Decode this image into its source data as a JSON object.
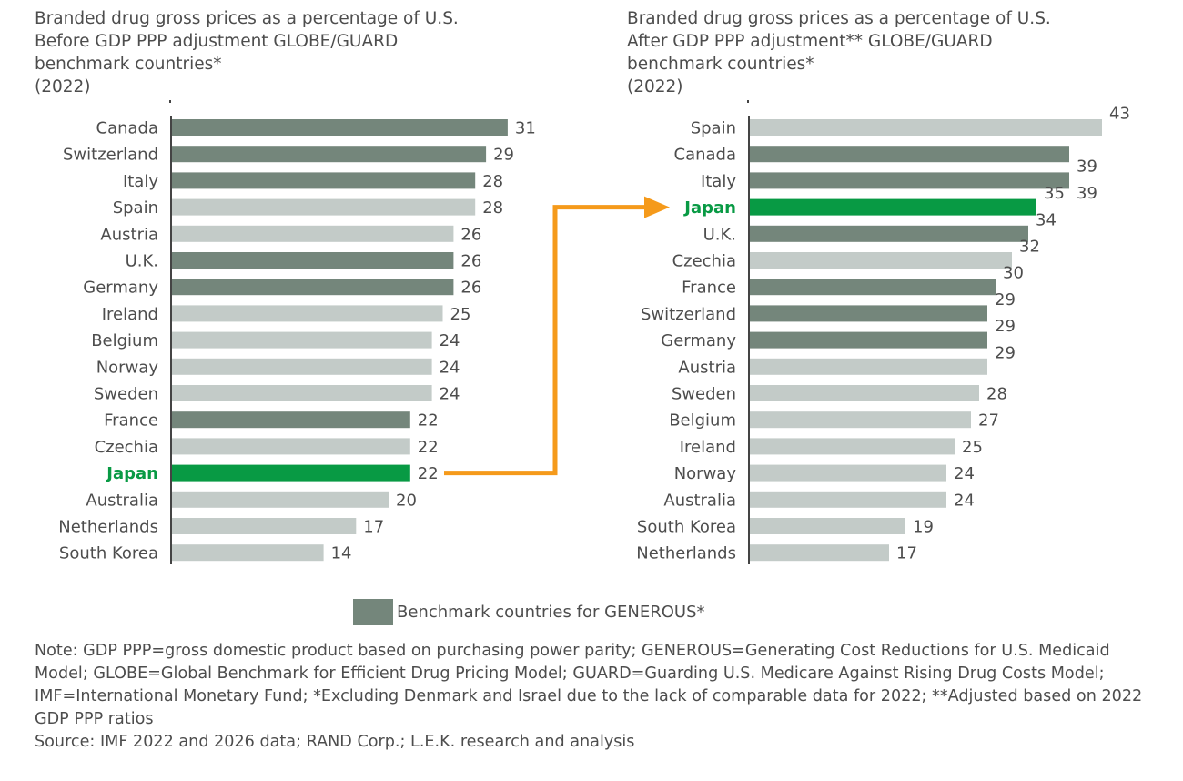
{
  "colors": {
    "benchmark": "#74867b",
    "other": "#c3cbc8",
    "japan": "#089a44",
    "arrow": "#f59a1b",
    "text": "#4d4d4d"
  },
  "chart_data": [
    {
      "type": "bar",
      "orientation": "horizontal",
      "title": "Branded drug gross prices as a percentage of U.S.\nBefore GDP PPP adjustment GLOBE/GUARD\nbenchmark countries*\n(2022)",
      "categories": [
        "Canada",
        "Switzerland",
        "Italy",
        "Spain",
        "Austria",
        "U.K.",
        "Germany",
        "Ireland",
        "Belgium",
        "Norway",
        "Sweden",
        "France",
        "Czechia",
        "Japan",
        "Australia",
        "Netherlands",
        "South Korea"
      ],
      "values": [
        31,
        29,
        28,
        28,
        26,
        26,
        26,
        25,
        24,
        24,
        24,
        22,
        22,
        22,
        20,
        17,
        14
      ],
      "group": [
        "benchmark",
        "benchmark",
        "benchmark",
        "other",
        "other",
        "benchmark",
        "benchmark",
        "other",
        "other",
        "other",
        "other",
        "benchmark",
        "other",
        "japan",
        "other",
        "other",
        "other"
      ]
    },
    {
      "type": "bar",
      "orientation": "horizontal",
      "title": "Branded drug gross prices as a percentage of U.S.\nAfter GDP PPP adjustment** GLOBE/GUARD\nbenchmark countries*\n(2022)",
      "categories": [
        "Spain",
        "Canada",
        "Italy",
        "Japan",
        "U.K.",
        "Czechia",
        "France",
        "Switzerland",
        "Germany",
        "Austria",
        "Sweden",
        "Belgium",
        "Ireland",
        "Norway",
        "Australia",
        "South Korea",
        "Netherlands"
      ],
      "values": [
        43,
        39,
        39,
        35,
        34,
        32,
        30,
        29,
        29,
        29,
        28,
        27,
        25,
        24,
        24,
        19,
        17
      ],
      "group": [
        "other",
        "benchmark",
        "benchmark",
        "japan",
        "benchmark",
        "other",
        "benchmark",
        "benchmark",
        "benchmark",
        "other",
        "other",
        "other",
        "other",
        "other",
        "other",
        "other",
        "other"
      ]
    }
  ],
  "legend": {
    "label": "Benchmark countries for GENEROUS*"
  },
  "note": {
    "text": "Note: GDP PPP=gross domestic product based on purchasing power parity; GENEROUS=Generating Cost Reductions for U.S. Medicaid Model; GLOBE=Global Benchmark for Efficient Drug Pricing Model; GUARD=Guarding U.S. Medicare Against Rising Drug Costs Model; IMF=International Monetary Fund; *Excluding Denmark and Israel due to the lack of comparable data for 2022; **Adjusted based on 2022 GDP PPP ratios",
    "source": "Source: IMF 2022 and 2026 data; RAND Corp.; L.E.K. research and analysis"
  }
}
